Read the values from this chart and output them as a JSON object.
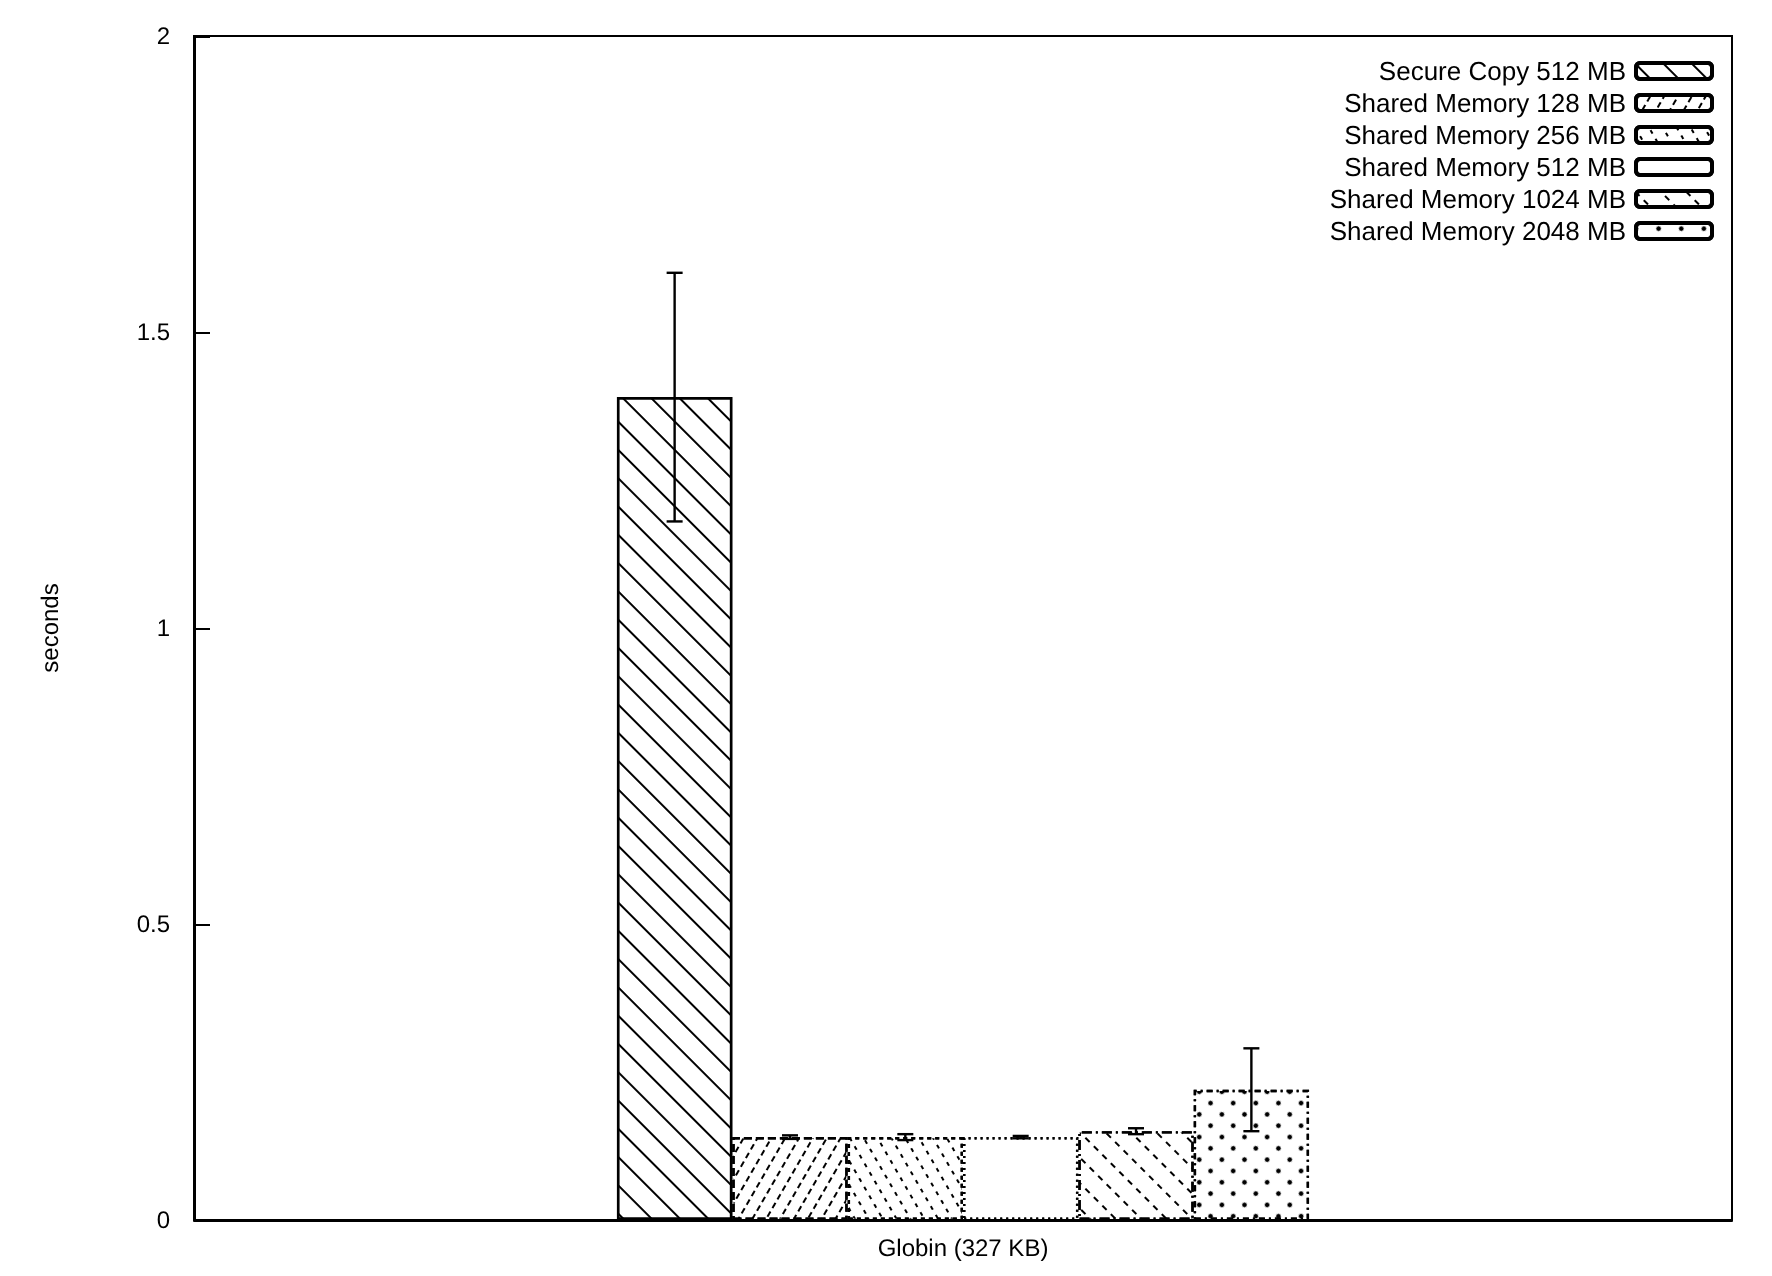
{
  "chart_data": {
    "type": "bar",
    "categories": [
      "Globin (327 KB)"
    ],
    "ylabel": "seconds",
    "ylim": [
      0,
      2
    ],
    "yticks": [
      0,
      0.5,
      1,
      1.5,
      2
    ],
    "grid": false,
    "legend": "top right",
    "series": [
      {
        "name": "Secure Copy 512 MB",
        "color": "#000000",
        "values": [
          1.39
        ],
        "errors": [
          [
            1.18,
            1.6
          ]
        ]
      },
      {
        "name": "Shared Memory 128 MB",
        "color": "#000000",
        "values": [
          0.14
        ],
        "errors": [
          0.003
        ]
      },
      {
        "name": "Shared Memory 256 MB",
        "color": "#000000",
        "values": [
          0.14
        ],
        "errors": [
          0.005
        ]
      },
      {
        "name": "Shared Memory 512 MB",
        "color": "#000000",
        "values": [
          0.14
        ],
        "errors": [
          0.002
        ]
      },
      {
        "name": "Shared Memory 1024 MB",
        "color": "#000000",
        "values": [
          0.15
        ],
        "errors": [
          0.005
        ]
      },
      {
        "name": "Shared Memory 2048 MB",
        "color": "#000000",
        "values": [
          0.22
        ],
        "errors": [
          0.07
        ]
      }
    ]
  }
}
